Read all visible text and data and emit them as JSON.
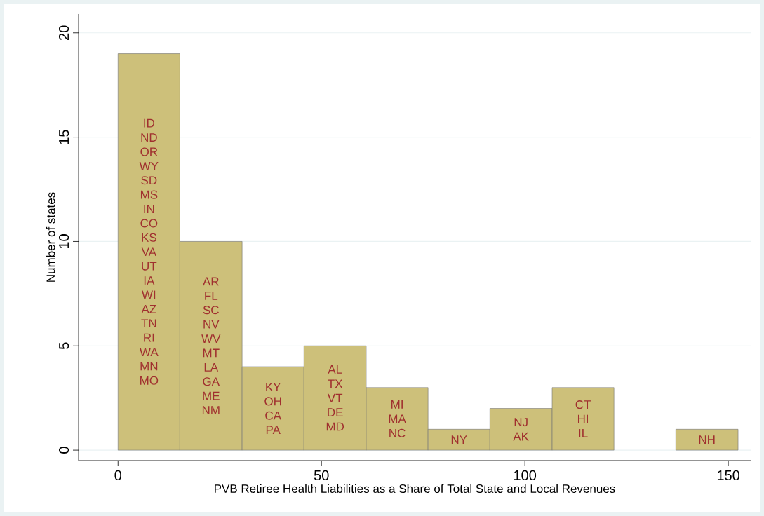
{
  "chart_data": {
    "type": "histogram",
    "xlabel": "PVB Retiree Health Liabilities as a Share of Total State and Local Revenues",
    "ylabel": "Number of states",
    "bins": [
      0,
      15.2,
      30.5,
      45.7,
      61.0,
      76.2,
      91.4,
      106.7,
      121.9,
      137.1,
      152.4
    ],
    "values": [
      19,
      10,
      4,
      5,
      3,
      1,
      2,
      3,
      0,
      1
    ],
    "color": "#cdc07a",
    "xlim": [
      -9.7,
      155.5
    ],
    "ylim": [
      -0.5,
      20.9
    ],
    "xticks": [
      0,
      50,
      100,
      150
    ],
    "yticks": [
      0,
      5,
      10,
      15,
      20
    ],
    "grid": "y",
    "annotations": [
      "ID ND OR WY SD MS IN CO KS VA UT IA WI AZ TN RI WA MN MO",
      "AR FL SC NV WV MT LA GA ME NM",
      "KY OH CA PA",
      "AL TX VT DE MD",
      "MI MA NC",
      "NY",
      "NJ AK",
      "CT HI IL",
      "NH"
    ]
  }
}
